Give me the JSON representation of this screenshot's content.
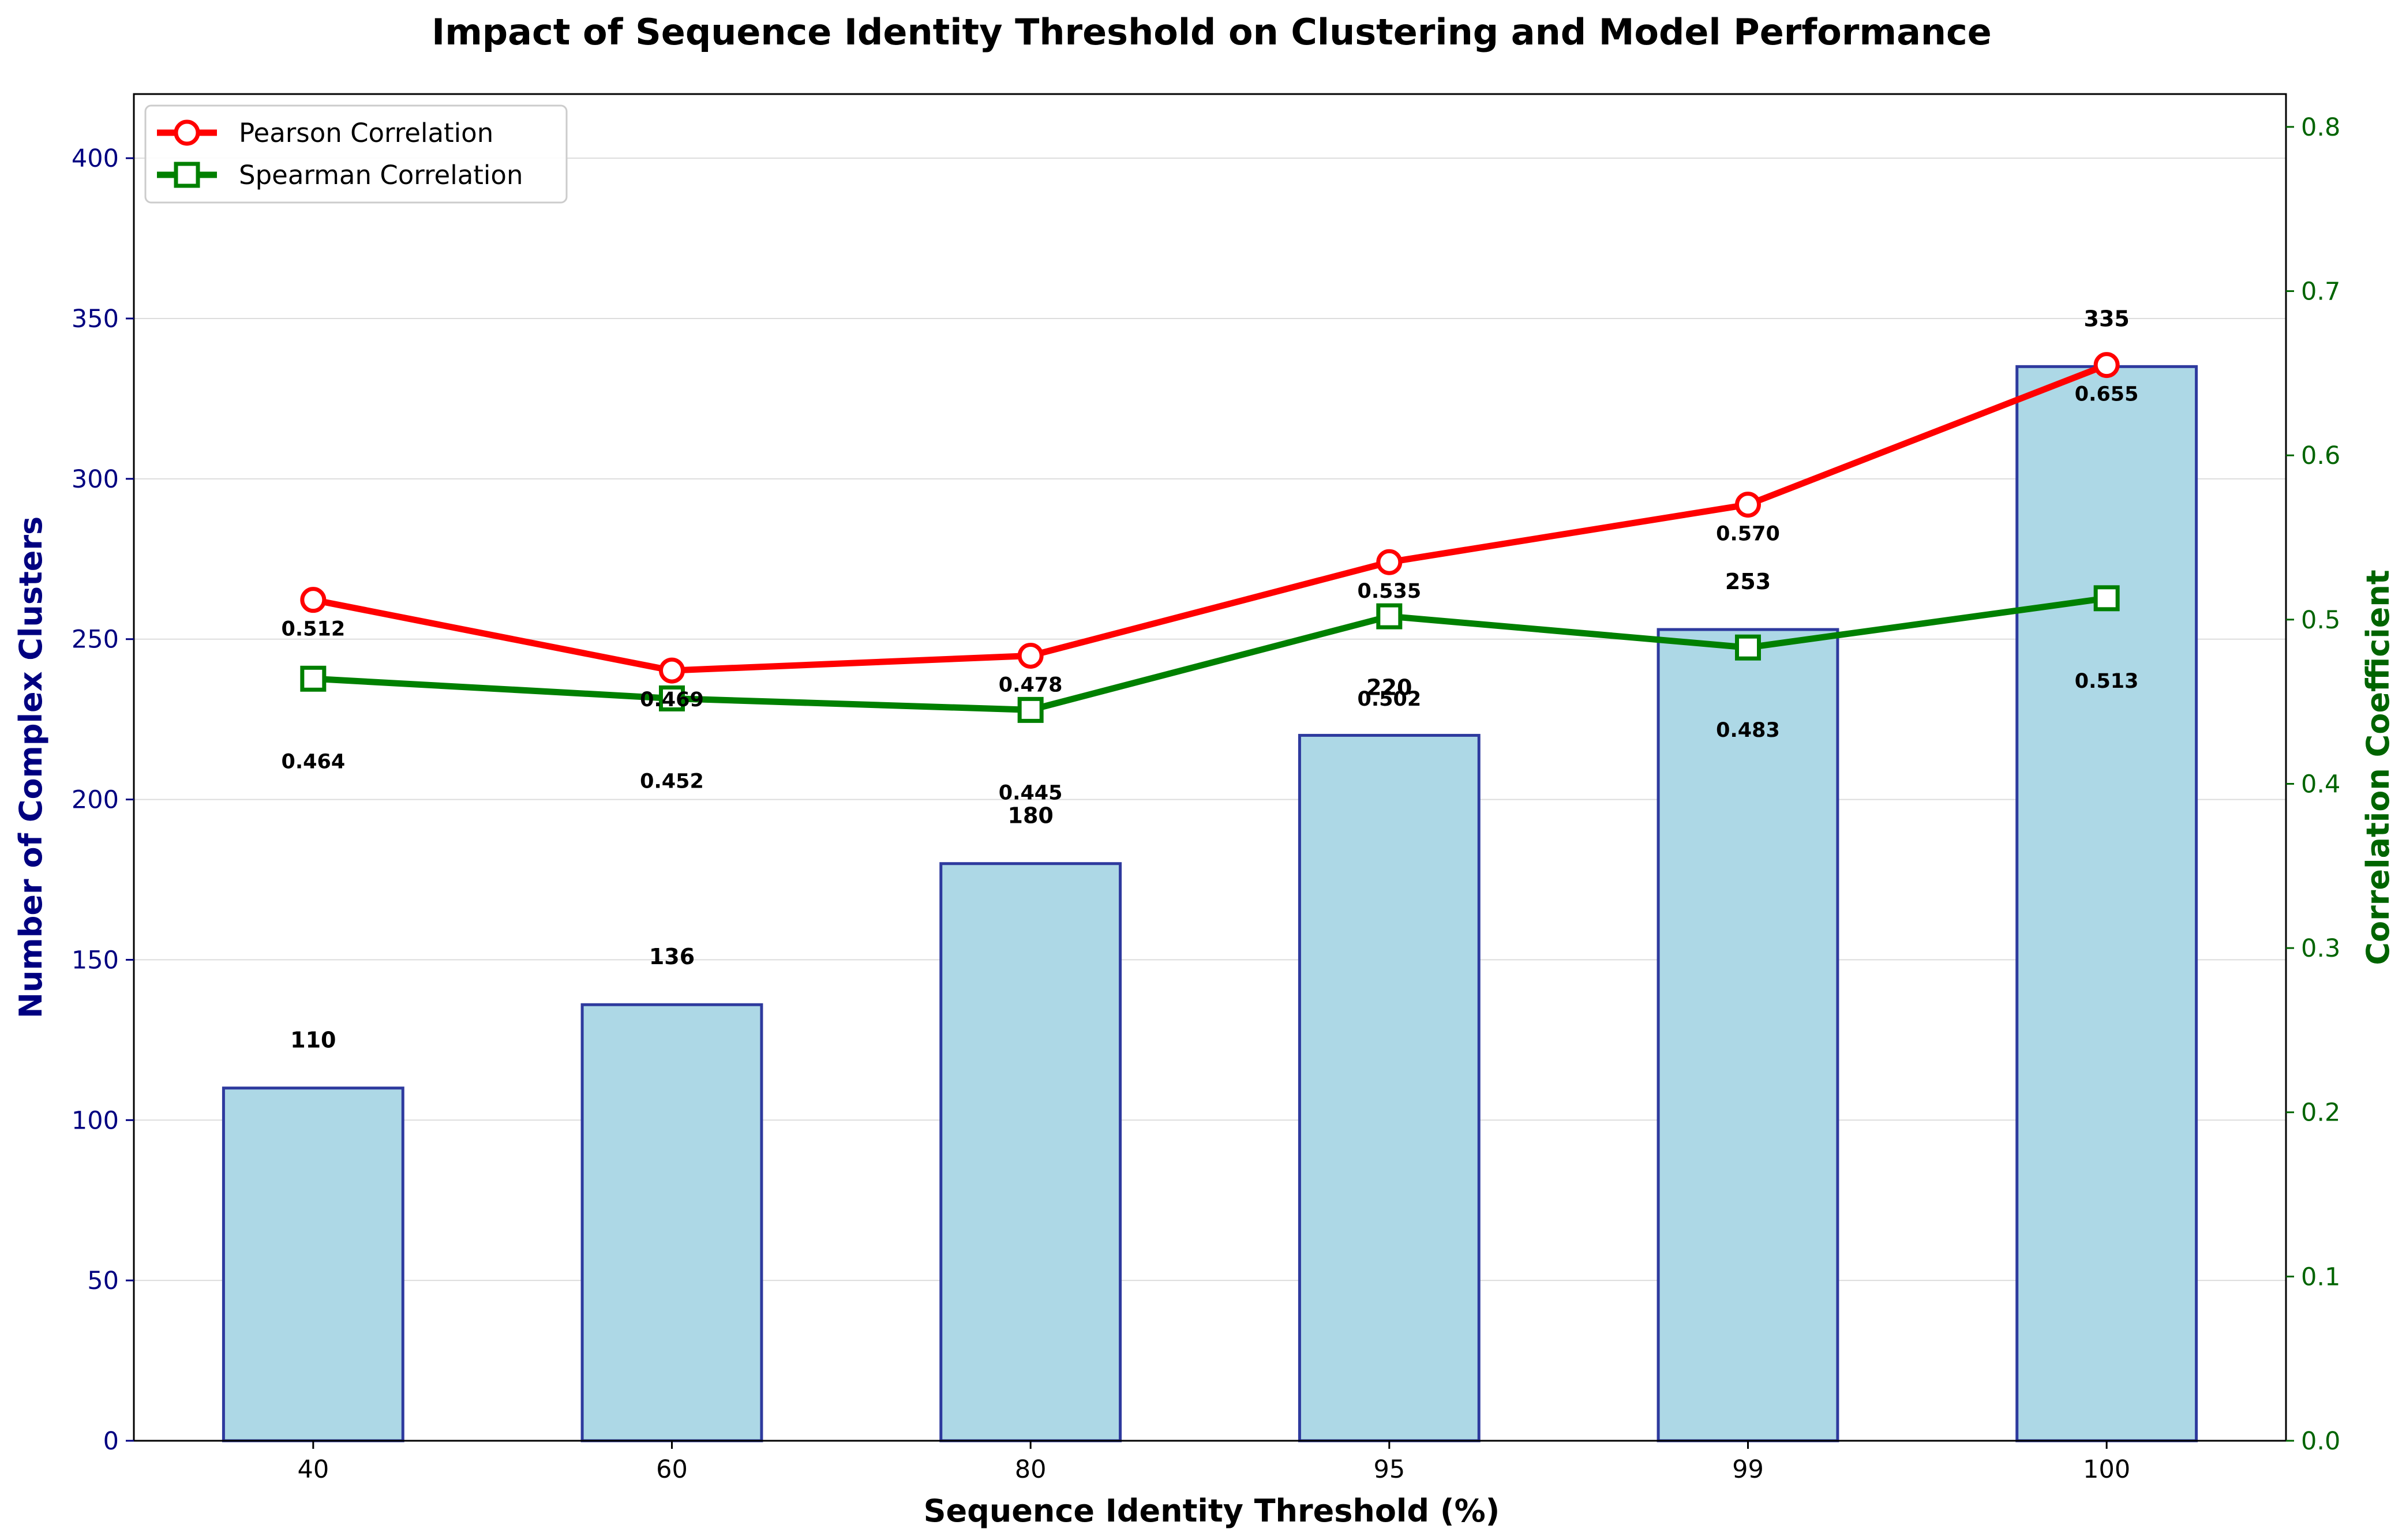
{
  "chart_data": {
    "type": "bar",
    "title": "Impact of Sequence Identity Threshold on Clustering and Model Performance",
    "xlabel": "Sequence Identity Threshold (%)",
    "ylabel_left": "Number of Complex Clusters",
    "ylabel_right": "Correlation Coefficient",
    "categories": [
      "40",
      "60",
      "80",
      "95",
      "99",
      "100"
    ],
    "bars": {
      "name": "Number of Complex Clusters",
      "values": [
        110,
        136,
        180,
        220,
        253,
        335
      ],
      "labels": [
        "110",
        "136",
        "180",
        "220",
        "253",
        "335"
      ],
      "color": "#ADD8E6",
      "edge_color": "#2E3A9E"
    },
    "lines": [
      {
        "name": "Pearson Correlation",
        "values": [
          0.512,
          0.469,
          0.478,
          0.535,
          0.57,
          0.655
        ],
        "labels": [
          "0.512",
          "0.469",
          "0.478",
          "0.535",
          "0.570",
          "0.655"
        ],
        "color": "#FF0000",
        "marker": "circle"
      },
      {
        "name": "Spearman Correlation",
        "values": [
          0.464,
          0.452,
          0.445,
          0.502,
          0.483,
          0.513
        ],
        "labels": [
          "0.464",
          "0.452",
          "0.445",
          "0.502",
          "0.483",
          "0.513"
        ],
        "color": "#008000",
        "marker": "square"
      }
    ],
    "ylim_left": [
      0,
      420
    ],
    "yticks_left": [
      "0",
      "50",
      "100",
      "150",
      "200",
      "250",
      "300",
      "350",
      "400"
    ],
    "ylim_right": [
      0,
      0.82
    ],
    "yticks_right": [
      "0.0",
      "0.1",
      "0.2",
      "0.3",
      "0.4",
      "0.5",
      "0.6",
      "0.7",
      "0.8"
    ],
    "left_axis_color": "#000080",
    "right_axis_color": "#006400",
    "grid": "horizontal",
    "legend_position": "upper-left"
  }
}
